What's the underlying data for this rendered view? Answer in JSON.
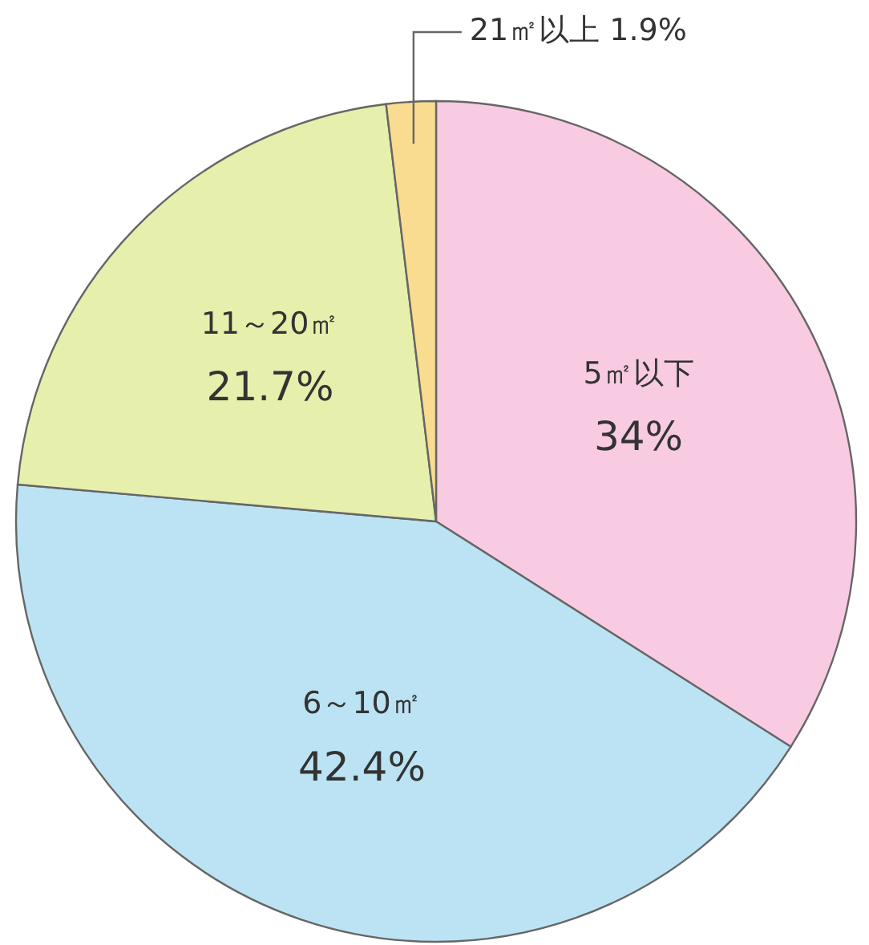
{
  "chart_data": {
    "type": "pie",
    "categories": [
      "5㎡以下",
      "6～10㎡",
      "11～20㎡",
      "21㎡以上"
    ],
    "values": [
      34,
      42.4,
      21.7,
      1.9
    ],
    "value_labels": [
      "34%",
      "42.4%",
      "21.7%",
      "1.9%"
    ],
    "colors": [
      "#f8cbe2",
      "#bce3f3",
      "#e6efac",
      "#f9dc90"
    ]
  }
}
